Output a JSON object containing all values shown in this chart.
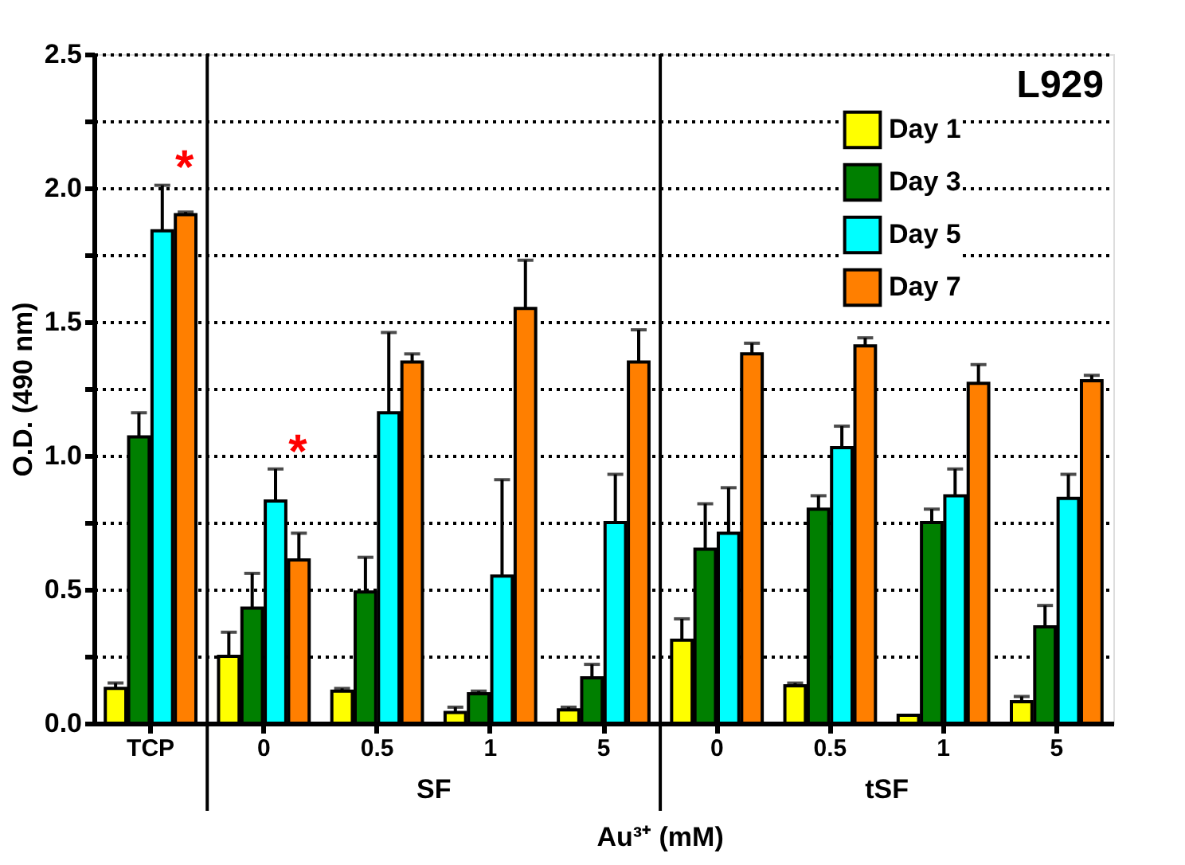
{
  "chart_data": {
    "type": "bar",
    "title": "L929",
    "xlabel": "Au³⁺ (mM)",
    "ylabel": "O.D. (490 nm)",
    "categories": [
      "TCP",
      "0",
      "0.5",
      "1",
      "5",
      "0",
      "0.5",
      "1",
      "5"
    ],
    "series": [
      {
        "name": "Day 1",
        "color": "#ffff00",
        "values": [
          0.13,
          0.25,
          0.12,
          0.04,
          0.05,
          0.31,
          0.14,
          0.03,
          0.08
        ],
        "errors": [
          [
            0.13,
            0.15
          ],
          [
            0.25,
            0.34
          ],
          [
            0.12,
            0.13
          ],
          [
            0.04,
            0.06
          ],
          [
            0.05,
            0.06
          ],
          [
            0.31,
            0.39
          ],
          [
            0.14,
            0.15
          ],
          null,
          [
            0.08,
            0.1
          ]
        ]
      },
      {
        "name": "Day 3",
        "color": "#007f00",
        "values": [
          1.07,
          0.43,
          0.49,
          0.11,
          0.17,
          0.65,
          0.8,
          0.75,
          0.36
        ],
        "errors": [
          [
            1.07,
            1.16
          ],
          [
            0.43,
            0.56
          ],
          [
            0.49,
            0.62
          ],
          [
            0.11,
            0.12
          ],
          [
            0.17,
            0.22
          ],
          [
            0.65,
            0.82
          ],
          [
            0.8,
            0.85
          ],
          [
            0.75,
            0.8
          ],
          [
            0.36,
            0.44
          ]
        ]
      },
      {
        "name": "Day 5",
        "color": "#00ffff",
        "values": [
          1.84,
          0.83,
          1.16,
          0.55,
          0.75,
          0.71,
          1.03,
          0.85,
          0.84
        ],
        "errors": [
          [
            1.84,
            2.01
          ],
          [
            0.83,
            0.95
          ],
          [
            1.16,
            1.46
          ],
          [
            0.55,
            0.91
          ],
          [
            0.75,
            0.93
          ],
          [
            0.71,
            0.88
          ],
          [
            1.03,
            1.11
          ],
          [
            0.85,
            0.95
          ],
          [
            0.84,
            0.93
          ]
        ]
      },
      {
        "name": "Day 7",
        "color": "#ff7f00",
        "values": [
          1.9,
          0.61,
          1.35,
          1.55,
          1.35,
          1.38,
          1.41,
          1.27,
          1.28
        ],
        "errors": [
          [
            1.9,
            1.91
          ],
          [
            0.61,
            0.71
          ],
          [
            1.35,
            1.38
          ],
          [
            1.55,
            1.73
          ],
          [
            1.35,
            1.47
          ],
          [
            1.38,
            1.42
          ],
          [
            1.41,
            1.44
          ],
          [
            1.27,
            1.34
          ],
          [
            1.28,
            1.3
          ]
        ]
      }
    ],
    "ylim": [
      0,
      2.5
    ],
    "yticks": [
      {
        "value": 0,
        "label": "0.0"
      },
      {
        "value": 0.25,
        "label": null
      },
      {
        "value": 0.5,
        "label": "0.5"
      },
      {
        "value": 0.75,
        "label": null
      },
      {
        "value": 1,
        "label": "1.0"
      },
      {
        "value": 1.25,
        "label": null
      },
      {
        "value": 1.5,
        "label": "1.5"
      },
      {
        "value": 1.75,
        "label": null
      },
      {
        "value": 2,
        "label": "2.0"
      },
      {
        "value": 2.25,
        "label": null
      },
      {
        "value": 2.5,
        "label": "2.5"
      }
    ],
    "grid": "y",
    "legend": "top right",
    "annotations": [
      "*",
      "*",
      "SF",
      "tSF"
    ]
  }
}
